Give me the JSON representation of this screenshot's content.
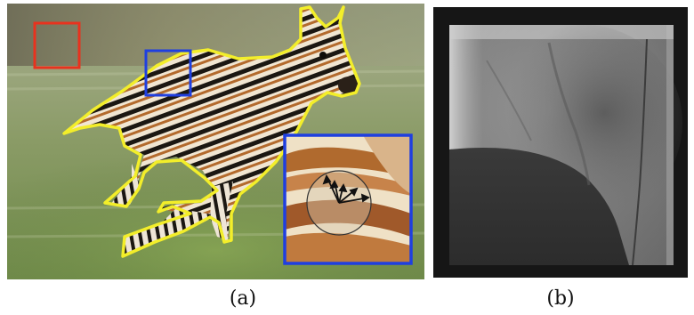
{
  "figure": {
    "panels": [
      {
        "id": "a",
        "caption": "(a)",
        "content": "zebra-photo-with-segmentation"
      },
      {
        "id": "b",
        "caption": "(b)",
        "content": "x-ray-fluoroscopy-image"
      }
    ]
  },
  "colors": {
    "outline": "#f3ee2a",
    "highlight_box": "#1f3fe0",
    "background_box": "#e8321e",
    "vector_arrows": "#111111"
  }
}
